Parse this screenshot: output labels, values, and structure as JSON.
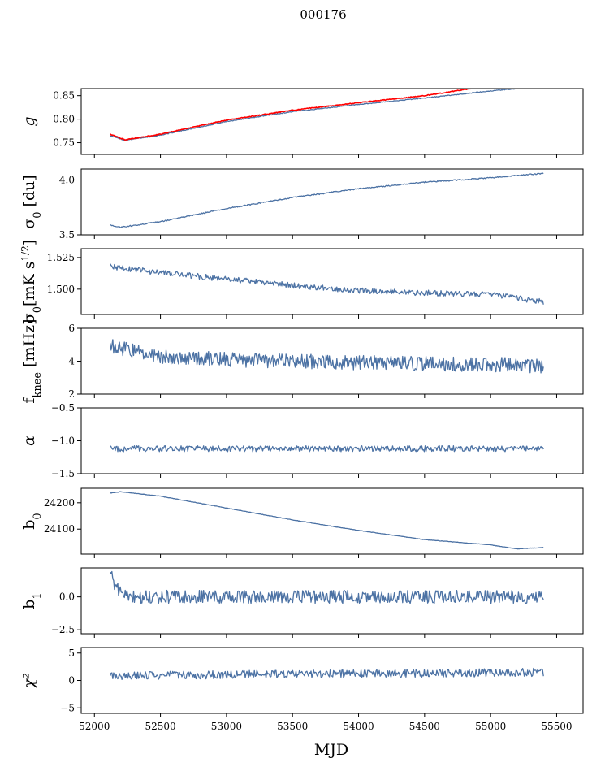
{
  "figure": {
    "suptitle": "000176",
    "xlabel": "MJD"
  },
  "chart_data": {
    "type": "line",
    "shared_x": {
      "xlim": [
        51900,
        55700
      ],
      "ticks": [
        52000,
        52500,
        53000,
        53500,
        54000,
        54500,
        55000,
        55500
      ],
      "tick_labels": [
        "52000",
        "52500",
        "53000",
        "53500",
        "54000",
        "54500",
        "55000",
        "55500"
      ]
    },
    "panels": [
      {
        "key": "g",
        "ylabel": "g",
        "ylim": [
          0.725,
          0.865
        ],
        "yticks": [
          0.75,
          0.8,
          0.85
        ],
        "ytick_labels": [
          "0.75",
          "0.80",
          "0.85"
        ],
        "series": [
          {
            "color": "#4c72a4",
            "x": [
              52120,
              52230,
              52500,
              53000,
              53500,
              54000,
              54500,
              55000,
              55200
            ],
            "y": [
              0.765,
              0.755,
              0.766,
              0.795,
              0.816,
              0.831,
              0.845,
              0.86,
              0.865
            ]
          },
          {
            "color": "#ff0000",
            "x": [
              52120,
              52230,
              52500,
              53000,
              53500,
              54000,
              54500,
              54850
            ],
            "y": [
              0.768,
              0.756,
              0.768,
              0.798,
              0.819,
              0.835,
              0.85,
              0.865
            ]
          }
        ],
        "noise": 0.0008
      },
      {
        "key": "sigma0_du",
        "ylabel": "σ0 [du]",
        "ylim": [
          3.5,
          4.1
        ],
        "yticks": [
          3.5,
          4.0
        ],
        "ytick_labels": [
          "3.5",
          "4.0"
        ],
        "series": [
          {
            "color": "#4c72a4",
            "x": [
              52120,
              52200,
              52500,
              53000,
              53500,
              54000,
              54500,
              55000,
              55400
            ],
            "y": [
              3.59,
              3.57,
              3.62,
              3.74,
              3.84,
              3.92,
              3.98,
              4.02,
              4.06
            ]
          }
        ],
        "noise": 0.005
      },
      {
        "key": "sigma0_mK",
        "ylabel": "σ0[mK s^1/2]",
        "ylim": [
          1.48,
          1.532
        ],
        "yticks": [
          1.5,
          1.525
        ],
        "ytick_labels": [
          "1.500",
          "1.525"
        ],
        "series": [
          {
            "color": "#4c72a4",
            "x": [
              52120,
              52500,
              53000,
              53500,
              54000,
              54500,
              55000,
              55400
            ],
            "y": [
              1.518,
              1.513,
              1.508,
              1.503,
              1.499,
              1.497,
              1.496,
              1.49
            ]
          }
        ],
        "noise": 0.0022
      },
      {
        "key": "fknee",
        "ylabel": "fknee [mHz]",
        "ylim": [
          2,
          6
        ],
        "yticks": [
          2,
          4,
          6
        ],
        "ytick_labels": [
          "2",
          "4",
          "6"
        ],
        "series": [
          {
            "color": "#4c72a4",
            "x": [
              52120,
              52500,
              53000,
              53500,
              54000,
              54500,
              55000,
              55400
            ],
            "y": [
              4.9,
              4.3,
              4.1,
              4.0,
              3.9,
              3.85,
              3.8,
              3.7
            ]
          }
        ],
        "noise": 0.45
      },
      {
        "key": "alpha",
        "ylabel": "α",
        "ylim": [
          -1.5,
          -0.5
        ],
        "yticks": [
          -1.5,
          -1.0,
          -0.5
        ],
        "ytick_labels": [
          "−1.5",
          "−1.0",
          "−0.5"
        ],
        "series": [
          {
            "color": "#4c72a4",
            "x": [
              52120,
              55400
            ],
            "y": [
              -1.12,
              -1.12
            ]
          }
        ],
        "noise": 0.045
      },
      {
        "key": "b0",
        "ylabel": "b0",
        "ylim": [
          24005,
          24255
        ],
        "yticks": [
          24100,
          24200
        ],
        "ytick_labels": [
          "24100",
          "24200"
        ],
        "series": [
          {
            "color": "#4c72a4",
            "x": [
              52120,
              52200,
              52500,
              53000,
              53500,
              54000,
              54500,
              55000,
              55200,
              55400
            ],
            "y": [
              24237,
              24242,
              24225,
              24180,
              24135,
              24095,
              24060,
              24040,
              24025,
              24030
            ]
          }
        ],
        "noise": 0.8
      },
      {
        "key": "b1",
        "ylabel": "b1",
        "ylim": [
          -2.8,
          2.2
        ],
        "yticks": [
          -2.5,
          0.0
        ],
        "ytick_labels": [
          "−2.5",
          "0.0"
        ],
        "series": [
          {
            "color": "#4c72a4",
            "x": [
              52120,
              52140,
              52200,
              52300,
              55400
            ],
            "y": [
              2.0,
              1.2,
              0.2,
              0.0,
              0.0
            ]
          }
        ],
        "noise": 0.5
      },
      {
        "key": "chi2",
        "ylabel": "χ²",
        "ylim": [
          -6,
          6
        ],
        "yticks": [
          -5,
          0,
          5
        ],
        "ytick_labels": [
          "−5",
          "0",
          "5"
        ],
        "series": [
          {
            "color": "#4c72a4",
            "x": [
              52120,
              52500,
              53500,
              54500,
              55400
            ],
            "y": [
              0.8,
              0.9,
              1.2,
              1.3,
              1.5
            ]
          }
        ],
        "noise": 0.75
      }
    ]
  }
}
